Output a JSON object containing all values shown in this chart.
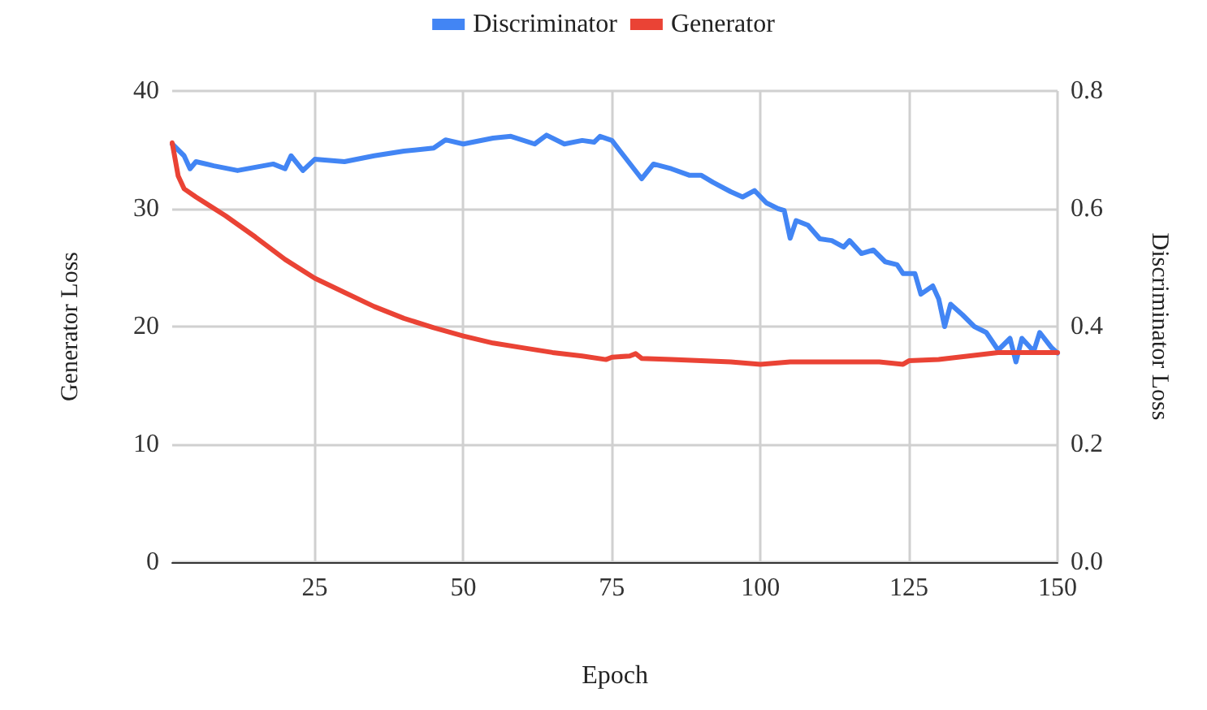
{
  "chart_data": {
    "type": "line",
    "xlabel": "Epoch",
    "ylabel": "Generator Loss",
    "y2label": "Discriminator Loss",
    "xlim": [
      1,
      150
    ],
    "xticks": [
      25,
      50,
      75,
      100,
      125,
      150
    ],
    "ylim": [
      0,
      40
    ],
    "yticks": [
      0,
      10,
      20,
      30,
      40
    ],
    "y2lim": [
      0,
      0.8
    ],
    "y2ticks": [
      {
        "value": 0,
        "label": "0.0"
      },
      0.2,
      0.4,
      0.6,
      0.8
    ],
    "grid": true,
    "legend": "top",
    "marker": "none",
    "line_style": "solid",
    "series": [
      {
        "name": "Discriminator",
        "color": "#4285f4",
        "axis": "y2",
        "x": [
          1,
          3,
          4,
          5,
          8,
          12,
          18,
          20,
          21,
          23,
          25,
          30,
          35,
          40,
          45,
          47,
          50,
          55,
          58,
          62,
          64,
          67,
          70,
          72,
          73,
          75,
          77,
          80,
          82,
          85,
          88,
          90,
          92,
          95,
          97,
          99,
          101,
          103,
          104,
          105,
          106,
          108,
          110,
          112,
          114,
          115,
          117,
          119,
          121,
          123,
          124,
          126,
          127,
          129,
          130,
          131,
          132,
          134,
          136,
          138,
          140,
          142,
          143,
          144,
          146,
          147,
          149,
          150
        ],
        "values": [
          0.71,
          0.69,
          0.668,
          0.68,
          0.673,
          0.665,
          0.676,
          0.668,
          0.69,
          0.665,
          0.684,
          0.68,
          0.69,
          0.698,
          0.703,
          0.717,
          0.71,
          0.72,
          0.723,
          0.71,
          0.725,
          0.71,
          0.716,
          0.713,
          0.723,
          0.716,
          0.69,
          0.651,
          0.676,
          0.668,
          0.657,
          0.657,
          0.645,
          0.629,
          0.62,
          0.631,
          0.61,
          0.6,
          0.597,
          0.55,
          0.58,
          0.572,
          0.549,
          0.546,
          0.535,
          0.546,
          0.524,
          0.53,
          0.51,
          0.505,
          0.49,
          0.49,
          0.455,
          0.469,
          0.447,
          0.4,
          0.438,
          0.42,
          0.4,
          0.39,
          0.36,
          0.38,
          0.34,
          0.38,
          0.358,
          0.39,
          0.364,
          0.355
        ]
      },
      {
        "name": "Generator",
        "color": "#ea4335",
        "x": [
          1,
          2,
          3,
          5,
          10,
          15,
          20,
          25,
          30,
          35,
          40,
          45,
          50,
          55,
          60,
          65,
          70,
          74,
          75,
          78,
          79,
          80,
          85,
          90,
          95,
          100,
          105,
          110,
          115,
          120,
          124,
          125,
          130,
          135,
          140,
          145,
          150
        ],
        "values": [
          35.6,
          32.8,
          31.7,
          31,
          29.4,
          27.6,
          25.7,
          24.1,
          22.9,
          21.7,
          20.7,
          19.9,
          19.2,
          18.6,
          18.2,
          17.8,
          17.5,
          17.2,
          17.4,
          17.5,
          17.7,
          17.3,
          17.2,
          17.1,
          17,
          16.8,
          17,
          17,
          17,
          17,
          16.8,
          17.1,
          17.2,
          17.5,
          17.8,
          17.8,
          17.8
        ]
      }
    ]
  }
}
